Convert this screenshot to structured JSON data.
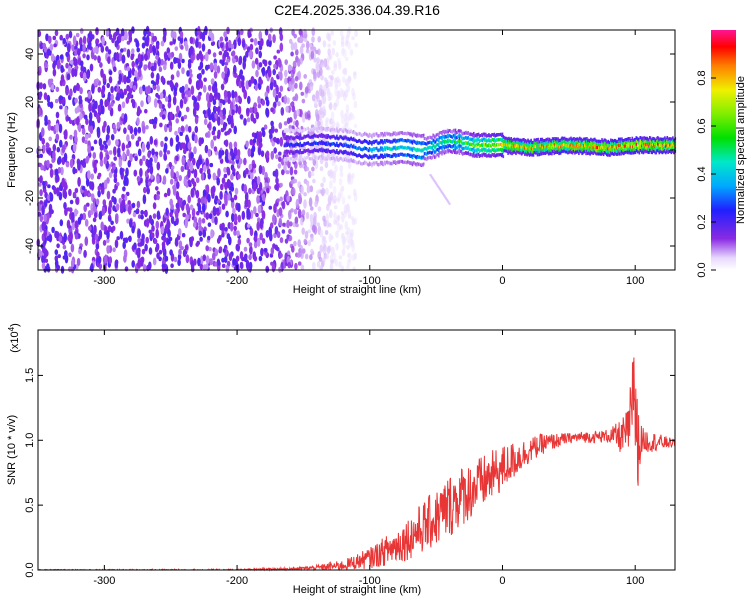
{
  "title": "C2E4.2025.336.04.39.R16",
  "chart_data": [
    {
      "type": "heatmap",
      "xlabel": "Height of straight line (km)",
      "ylabel": "Frequency (Hz)",
      "xlim": [
        -350,
        130
      ],
      "ylim": [
        -50,
        50
      ],
      "xticks": [
        "-300",
        "-200",
        "-100",
        "0",
        "100"
      ],
      "xtick_values": [
        -300,
        -200,
        -100,
        0,
        100
      ],
      "yticks": [
        "-40",
        "-20",
        "0",
        "20",
        "40"
      ],
      "ytick_values": [
        -40,
        -20,
        0,
        20,
        40
      ],
      "grid": false,
      "colorbar": {
        "label": "Normalized spectral amplitude",
        "ticks": [
          "0.0",
          "0.2",
          "0.4",
          "0.6",
          "0.8"
        ],
        "tick_values": [
          0.0,
          0.2,
          0.4,
          0.6,
          0.8
        ],
        "range": [
          0,
          1
        ],
        "colormap": "rainbow (white-purple-blue-cyan-green-yellow-red-magenta)"
      },
      "features": {
        "noise_region_x": [
          -350,
          -120
        ],
        "signal_center_freq_hz": [
          [
            -160,
            2
          ],
          [
            -140,
            3
          ],
          [
            -120,
            2
          ],
          [
            -100,
            0
          ],
          [
            -80,
            1
          ],
          [
            -60,
            0
          ],
          [
            -40,
            4
          ],
          [
            -20,
            2
          ],
          [
            0,
            2
          ],
          [
            20,
            1
          ],
          [
            50,
            2
          ],
          [
            80,
            1
          ],
          [
            100,
            2
          ],
          [
            130,
            2
          ]
        ],
        "signal_peak_amplitude": [
          [
            -160,
            0.25
          ],
          [
            -120,
            0.3
          ],
          [
            -80,
            0.45
          ],
          [
            -40,
            0.5
          ],
          [
            0,
            0.8
          ],
          [
            50,
            0.85
          ],
          [
            100,
            0.9
          ],
          [
            130,
            0.9
          ]
        ]
      }
    },
    {
      "type": "line",
      "xlabel": "Height of straight line (km)",
      "ylabel": "SNR (10 * v/v)",
      "yscale_label": "(x10",
      "yscale_exp": "4",
      "yscale_close": ")",
      "xlim": [
        -350,
        130
      ],
      "ylim": [
        0,
        1.85
      ],
      "xticks": [
        "-300",
        "-200",
        "-100",
        "0",
        "100"
      ],
      "xtick_values": [
        -300,
        -200,
        -100,
        0,
        100
      ],
      "yticks": [
        "0.0",
        "0.5",
        "1.0",
        "1.5"
      ],
      "ytick_values": [
        0.0,
        0.5,
        1.0,
        1.5
      ],
      "grid": false,
      "color": "#e83535",
      "series": [
        {
          "x": [
            -350,
            -300,
            -250,
            -200,
            -160,
            -140,
            -120,
            -110,
            -100,
            -90,
            -80,
            -70,
            -60,
            -50,
            -40,
            -30,
            -20,
            -10,
            0,
            10,
            20,
            30,
            40,
            50,
            60,
            70,
            80,
            90,
            95,
            98,
            100,
            105,
            110,
            120,
            130
          ],
          "values": [
            0.0,
            0.0,
            0.0,
            0.0,
            0.01,
            0.02,
            0.04,
            0.07,
            0.1,
            0.15,
            0.2,
            0.27,
            0.35,
            0.42,
            0.52,
            0.6,
            0.66,
            0.73,
            0.8,
            0.87,
            0.93,
            0.98,
            1.0,
            1.02,
            1.03,
            1.03,
            1.04,
            1.04,
            1.1,
            1.3,
            1.0,
            1.01,
            1.0,
            0.99,
            0.98
          ]
        }
      ],
      "noise_amplitude": [
        [
          -350,
          0.005
        ],
        [
          -150,
          0.01
        ],
        [
          -120,
          0.04
        ],
        [
          -100,
          0.08
        ],
        [
          -80,
          0.14
        ],
        [
          -60,
          0.2
        ],
        [
          -40,
          0.25
        ],
        [
          -20,
          0.22
        ],
        [
          0,
          0.18
        ],
        [
          20,
          0.1
        ],
        [
          50,
          0.04
        ],
        [
          80,
          0.05
        ],
        [
          95,
          0.18
        ],
        [
          100,
          0.5
        ],
        [
          105,
          0.1
        ],
        [
          130,
          0.03
        ]
      ]
    }
  ]
}
